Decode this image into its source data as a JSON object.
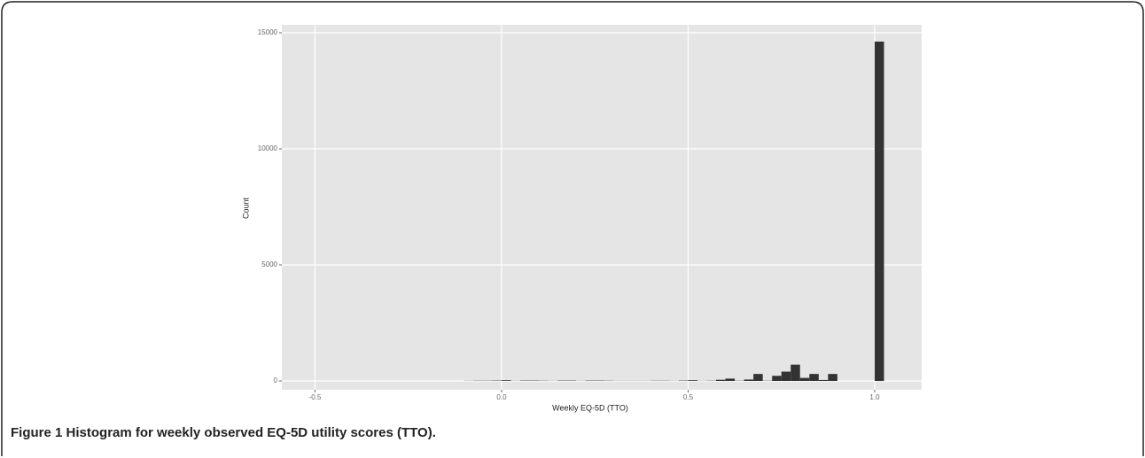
{
  "chart_data": {
    "type": "histogram",
    "figure_label": "Figure 1",
    "caption": "Histogram for weekly observed EQ-5D utility scores (TTO).",
    "x_label": "Weekly EQ-5D (TTO)",
    "y_label": "Count",
    "color": "#333333",
    "background": "#e5e5e5",
    "grid": true,
    "bins": [
      -0.1,
      -0.075,
      -0.05,
      -0.025,
      0,
      0.025,
      0.05,
      0.075,
      0.1,
      0.125,
      0.15,
      0.175,
      0.2,
      0.225,
      0.25,
      0.275,
      0.3,
      0.325,
      0.35,
      0.375,
      0.4,
      0.425,
      0.45,
      0.475,
      0.5,
      0.525,
      0.55,
      0.575,
      0.6,
      0.625,
      0.65,
      0.675,
      0.7,
      0.725,
      0.75,
      0.775,
      0.8,
      0.825,
      0.85,
      0.875,
      0.9,
      0.925,
      0.95,
      0.975,
      1.0,
      1.025
    ],
    "counts": [
      5,
      10,
      10,
      15,
      30,
      5,
      15,
      15,
      10,
      5,
      15,
      15,
      5,
      15,
      15,
      10,
      5,
      5,
      5,
      5,
      10,
      10,
      5,
      15,
      30,
      5,
      10,
      50,
      100,
      10,
      60,
      300,
      10,
      220,
      400,
      700,
      130,
      300,
      40,
      300,
      0,
      0,
      0,
      0,
      14620
    ],
    "xlim": [
      -0.589,
      1.126
    ],
    "ylim": [
      -382,
      15343
    ],
    "xticks": [
      {
        "value": -0.5,
        "label": "-0.5"
      },
      {
        "value": 0,
        "label": "0.0"
      },
      {
        "value": 0.5,
        "label": "0.5"
      },
      {
        "value": 1,
        "label": "1.0"
      }
    ],
    "yticks": [
      0,
      5000,
      10000,
      15000
    ]
  }
}
